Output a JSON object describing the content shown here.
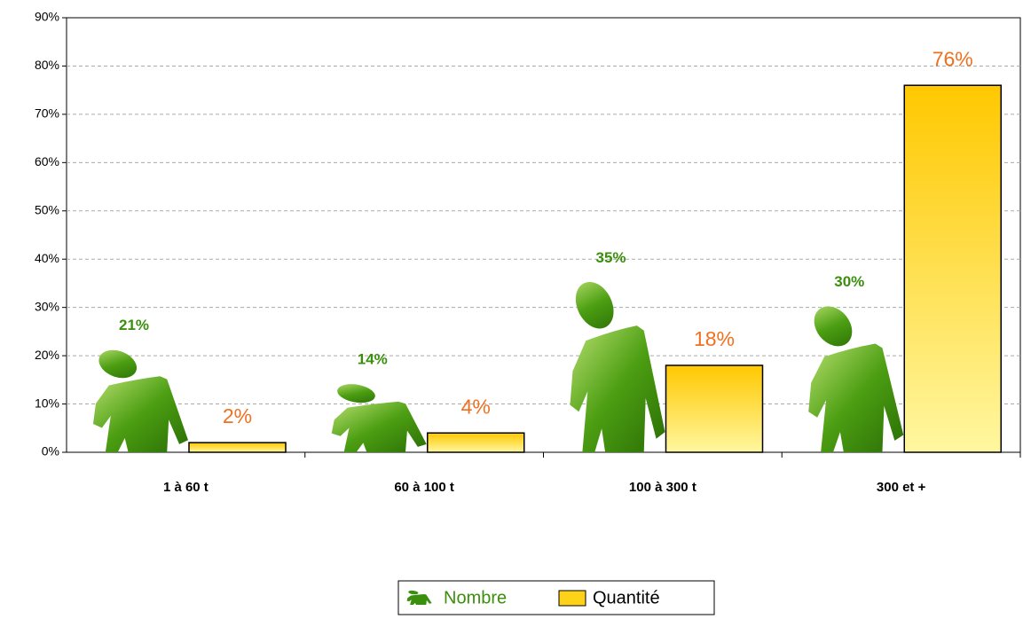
{
  "chart_data": {
    "type": "bar",
    "categories": [
      "1 à 60 t",
      "60 à 100 t",
      "100 à 300 t",
      "300 et +"
    ],
    "series": [
      {
        "name": "Nombre",
        "color": "#3a8f0c",
        "values": [
          21,
          14,
          35,
          30
        ],
        "value_labels": [
          "21%",
          "14%",
          "35%",
          "30%"
        ]
      },
      {
        "name": "Quantité",
        "color": "#ffd21a",
        "values": [
          2,
          4,
          18,
          76
        ],
        "value_labels": [
          "2%",
          "4%",
          "18%",
          "76%"
        ]
      }
    ],
    "ylim": [
      0,
      90
    ],
    "yticks": [
      {
        "value": 0,
        "label": "0%"
      },
      {
        "value": 10,
        "label": "10%"
      },
      {
        "value": 20,
        "label": "20%"
      },
      {
        "value": 30,
        "label": "30%"
      },
      {
        "value": 40,
        "label": "40%"
      },
      {
        "value": 50,
        "label": "50%"
      },
      {
        "value": 60,
        "label": "60%"
      },
      {
        "value": 70,
        "label": "70%"
      },
      {
        "value": 80,
        "label": "80%"
      },
      {
        "value": 90,
        "label": "90%"
      }
    ],
    "grid": true,
    "legend": "bottom"
  }
}
